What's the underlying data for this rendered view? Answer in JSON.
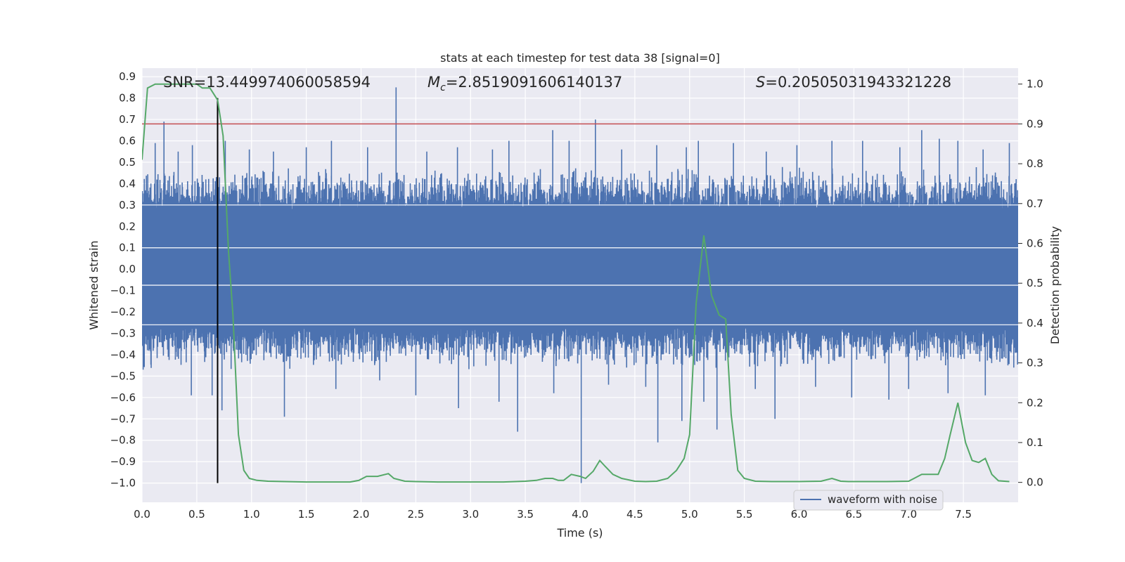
{
  "chart_data": {
    "type": "line",
    "title": "stats at each timestep for test data 38 [signal=0]",
    "xlabel": "Time (s)",
    "ylabel": "Whitened strain",
    "ylabel_right": "Detection probability",
    "xlim": [
      0.0,
      8.0
    ],
    "ylim": [
      -1.09,
      0.94
    ],
    "ylim_right": [
      -0.05,
      1.04
    ],
    "x_ticks": [
      "0.0",
      "0.5",
      "1.0",
      "1.5",
      "2.0",
      "2.5",
      "3.0",
      "3.5",
      "4.0",
      "4.5",
      "5.0",
      "5.5",
      "6.0",
      "6.5",
      "7.0",
      "7.5"
    ],
    "y_ticks": [
      "0.9",
      "0.8",
      "0.7",
      "0.6",
      "0.5",
      "0.4",
      "0.3",
      "0.2",
      "0.1",
      "0.0",
      "−0.1",
      "−0.2",
      "−0.3",
      "−0.4",
      "−0.5",
      "−0.6",
      "−0.7",
      "−0.8",
      "−0.9",
      "−1.0"
    ],
    "y_right_ticks": [
      "1.0",
      "0.9",
      "0.8",
      "0.7",
      "0.6",
      "0.5",
      "0.4",
      "0.3",
      "0.2",
      "0.1",
      "0.0"
    ],
    "annotations": {
      "snr": "SNR=13.449974060058594",
      "mc_symbol": "M",
      "mc_sub": "c",
      "mc_value": "=2.8519091606140137",
      "s_symbol": "S",
      "s_value": "=0.20505031943321228"
    },
    "legend": {
      "placement": "lower-right",
      "entries": [
        "waveform with noise"
      ]
    },
    "grid": true,
    "threshold_right": 0.9,
    "marker_time": 0.69,
    "colors": {
      "background": "#eaeaf2",
      "grid": "#ffffff",
      "waveform": "#4c72b0",
      "probability": "#55a868",
      "threshold": "#c44e52",
      "marker": "#000000"
    },
    "series": [
      {
        "name": "waveform with noise",
        "axis": "left",
        "style": "dense noise band",
        "band_core": [
          -0.27,
          0.28
        ],
        "spikes": [
          [
            0.12,
            0.59
          ],
          [
            0.2,
            0.69
          ],
          [
            0.33,
            0.55
          ],
          [
            0.46,
            0.58
          ],
          [
            0.69,
            0.61
          ],
          [
            0.76,
            0.6
          ],
          [
            0.98,
            0.56
          ],
          [
            1.2,
            0.55
          ],
          [
            1.5,
            0.57
          ],
          [
            1.73,
            0.6
          ],
          [
            2.06,
            0.57
          ],
          [
            2.32,
            0.85
          ],
          [
            2.6,
            0.55
          ],
          [
            2.88,
            0.57
          ],
          [
            3.2,
            0.56
          ],
          [
            3.35,
            0.6
          ],
          [
            3.75,
            0.65
          ],
          [
            3.9,
            0.6
          ],
          [
            4.14,
            0.7
          ],
          [
            4.38,
            0.56
          ],
          [
            4.7,
            0.58
          ],
          [
            4.97,
            0.57
          ],
          [
            5.08,
            0.6
          ],
          [
            5.4,
            0.59
          ],
          [
            5.7,
            0.55
          ],
          [
            5.98,
            0.58
          ],
          [
            6.3,
            0.6
          ],
          [
            6.58,
            0.6
          ],
          [
            6.92,
            0.57
          ],
          [
            7.12,
            0.65
          ],
          [
            7.28,
            0.61
          ],
          [
            7.45,
            0.6
          ],
          [
            7.68,
            0.56
          ],
          [
            7.92,
            0.59
          ],
          [
            0.01,
            -0.47
          ],
          [
            0.45,
            -0.59
          ],
          [
            0.64,
            -0.59
          ],
          [
            0.73,
            -0.66
          ],
          [
            1.3,
            -0.69
          ],
          [
            1.77,
            -0.56
          ],
          [
            2.17,
            -0.52
          ],
          [
            2.5,
            -0.59
          ],
          [
            2.89,
            -0.65
          ],
          [
            3.26,
            -0.62
          ],
          [
            3.43,
            -0.76
          ],
          [
            3.76,
            -0.58
          ],
          [
            4.01,
            -1.0
          ],
          [
            4.26,
            -0.54
          ],
          [
            4.6,
            -0.55
          ],
          [
            4.71,
            -0.81
          ],
          [
            4.93,
            -0.71
          ],
          [
            5.13,
            -0.62
          ],
          [
            5.25,
            -0.75
          ],
          [
            5.6,
            -0.56
          ],
          [
            5.78,
            -0.7
          ],
          [
            6.15,
            -0.55
          ],
          [
            6.48,
            -0.6
          ],
          [
            6.82,
            -0.61
          ],
          [
            7.0,
            -0.56
          ],
          [
            7.36,
            -0.58
          ],
          [
            7.7,
            -0.59
          ],
          [
            7.96,
            -0.46
          ]
        ]
      },
      {
        "name": "",
        "axis": "right",
        "x": [
          0.0,
          0.05,
          0.12,
          0.2,
          0.3,
          0.4,
          0.5,
          0.55,
          0.62,
          0.69,
          0.74,
          0.79,
          0.83,
          0.88,
          0.93,
          0.98,
          1.05,
          1.15,
          1.3,
          1.5,
          1.7,
          1.9,
          1.98,
          2.05,
          2.15,
          2.25,
          2.3,
          2.4,
          2.5,
          2.7,
          3.0,
          3.3,
          3.5,
          3.6,
          3.68,
          3.75,
          3.8,
          3.85,
          3.92,
          4.0,
          4.05,
          4.12,
          4.18,
          4.23,
          4.3,
          4.38,
          4.5,
          4.6,
          4.7,
          4.8,
          4.88,
          4.95,
          5.0,
          5.06,
          5.13,
          5.2,
          5.27,
          5.33,
          5.38,
          5.44,
          5.5,
          5.6,
          5.75,
          6.0,
          6.2,
          6.3,
          6.38,
          6.45,
          6.6,
          6.8,
          7.0,
          7.05,
          7.12,
          7.2,
          7.27,
          7.33,
          7.38,
          7.45,
          7.52,
          7.58,
          7.64,
          7.7,
          7.76,
          7.82,
          7.92
        ],
        "values": [
          0.81,
          0.99,
          1.0,
          1.0,
          1.0,
          1.0,
          1.0,
          0.99,
          0.99,
          0.96,
          0.87,
          0.58,
          0.42,
          0.12,
          0.03,
          0.01,
          0.005,
          0.003,
          0.002,
          0.001,
          0.001,
          0.001,
          0.005,
          0.015,
          0.015,
          0.022,
          0.01,
          0.003,
          0.002,
          0.001,
          0.001,
          0.001,
          0.003,
          0.005,
          0.01,
          0.01,
          0.005,
          0.005,
          0.02,
          0.015,
          0.01,
          0.028,
          0.055,
          0.04,
          0.02,
          0.01,
          0.003,
          0.002,
          0.003,
          0.01,
          0.03,
          0.06,
          0.12,
          0.45,
          0.62,
          0.47,
          0.42,
          0.41,
          0.17,
          0.03,
          0.01,
          0.003,
          0.002,
          0.002,
          0.003,
          0.01,
          0.003,
          0.002,
          0.002,
          0.002,
          0.003,
          0.01,
          0.02,
          0.02,
          0.02,
          0.06,
          0.12,
          0.2,
          0.1,
          0.055,
          0.05,
          0.06,
          0.02,
          0.004,
          0.002
        ]
      }
    ]
  }
}
